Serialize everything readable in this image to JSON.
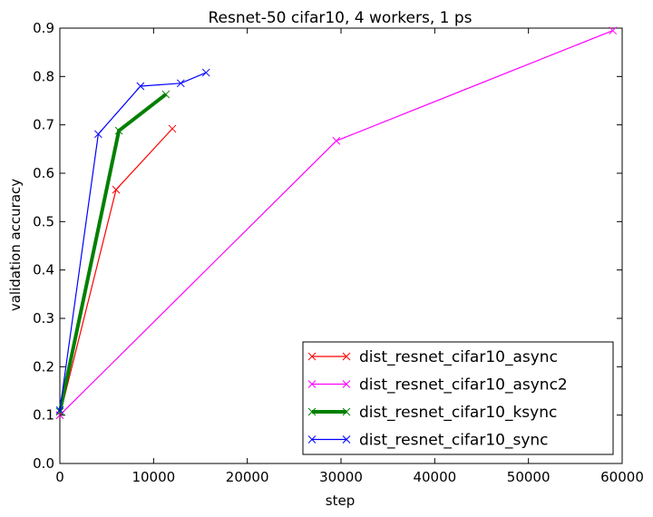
{
  "chart_data": {
    "type": "line",
    "title": "Resnet-50 cifar10, 4 workers, 1 ps",
    "xlabel": "step",
    "ylabel": "validation accuracy",
    "xlim": [
      0,
      60000
    ],
    "ylim": [
      0.0,
      0.9
    ],
    "xticks": [
      0,
      10000,
      20000,
      30000,
      40000,
      50000,
      60000
    ],
    "xtick_labels": [
      "0",
      "10000",
      "20000",
      "30000",
      "40000",
      "50000",
      "60000"
    ],
    "yticks": [
      0.0,
      0.1,
      0.2,
      0.3,
      0.4,
      0.5,
      0.6,
      0.7,
      0.8,
      0.9
    ],
    "ytick_labels": [
      "0.0",
      "0.1",
      "0.2",
      "0.3",
      "0.4",
      "0.5",
      "0.6",
      "0.7",
      "0.8",
      "0.9"
    ],
    "grid": false,
    "legend_position": "lower-right",
    "series": [
      {
        "name": "dist_resnet_cifar10_async",
        "color": "#ff0000",
        "line_width": "thin",
        "marker": "x",
        "x": [
          0,
          6000,
          12000
        ],
        "y": [
          0.1,
          0.566,
          0.692
        ]
      },
      {
        "name": "dist_resnet_cifar10_async2",
        "color": "#ff00ff",
        "line_width": "thin",
        "marker": "x",
        "x": [
          0,
          29500,
          59000
        ],
        "y": [
          0.1,
          0.667,
          0.895
        ]
      },
      {
        "name": "dist_resnet_cifar10_ksync",
        "color": "#008000",
        "line_width": "thick",
        "marker": "x",
        "x": [
          0,
          6300,
          11300
        ],
        "y": [
          0.107,
          0.688,
          0.763
        ]
      },
      {
        "name": "dist_resnet_cifar10_sync",
        "color": "#0000ff",
        "line_width": "thin",
        "marker": "x",
        "x": [
          0,
          4100,
          8600,
          12900,
          15600
        ],
        "y": [
          0.11,
          0.681,
          0.78,
          0.786,
          0.808
        ]
      }
    ]
  }
}
